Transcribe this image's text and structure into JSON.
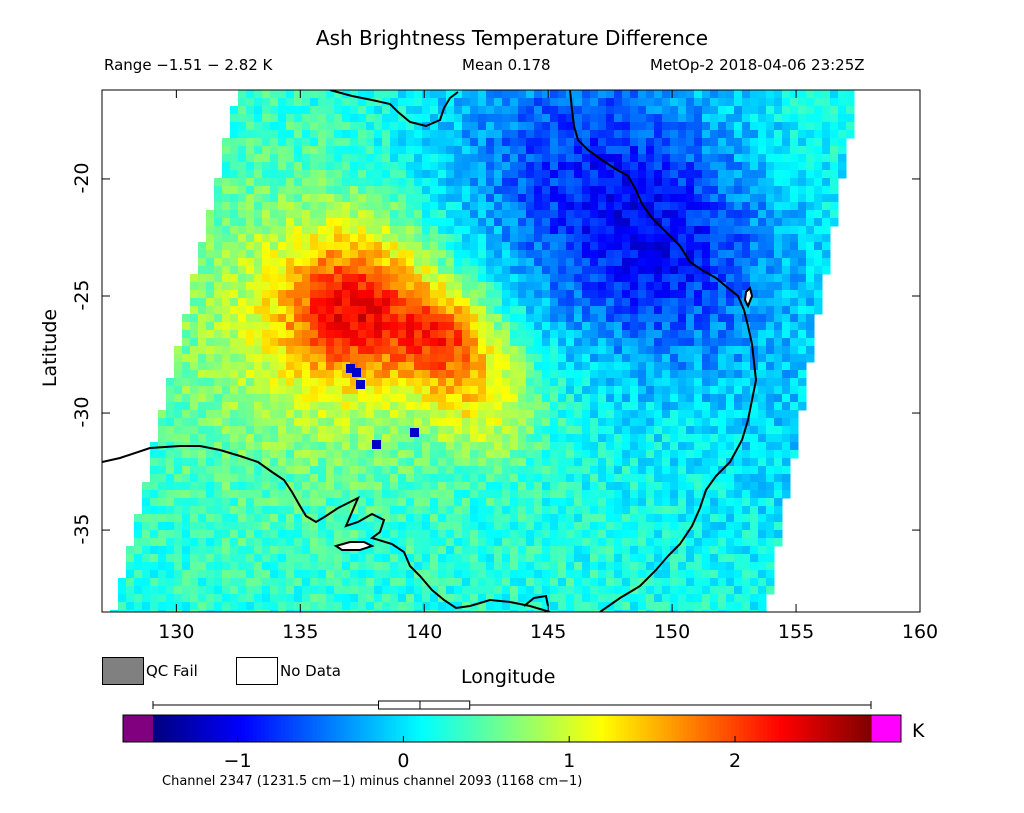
{
  "header": {
    "title": "Ash Brightness Temperature Difference",
    "range": "Range −1.51 − 2.82 K",
    "mean": "Mean 0.178",
    "satellite": "MetOp-2 2018-04-06 23:25Z"
  },
  "map": {
    "x_axis_label": "Longitude",
    "y_axis_label": "Latitude",
    "lon_range": [
      127,
      160
    ],
    "lat_range": [
      -38.5,
      -16.2
    ],
    "x_ticks": [
      "130",
      "135",
      "140",
      "145",
      "150",
      "155",
      "160"
    ],
    "y_ticks": [
      "-20",
      "-25",
      "-30",
      "-35"
    ],
    "swath_corners": [
      [
        132.5,
        -16.2
      ],
      [
        157.5,
        -16.2
      ],
      [
        153.8,
        -38.5
      ],
      [
        127.5,
        -38.5
      ]
    ],
    "hotspot_centers": [
      [
        137.3,
        -25.5
      ],
      [
        141.0,
        -26.8
      ],
      [
        142.5,
        -29.5
      ]
    ],
    "cold_region_centers": [
      [
        146,
        -19.5
      ],
      [
        150,
        -23.5
      ]
    ]
  },
  "legend": {
    "qc_fail": "QC Fail",
    "no_data": "No Data",
    "qc_fail_color": "#808080",
    "no_data_color": "#ffffff"
  },
  "colorbar": {
    "min": -1.51,
    "max": 2.82,
    "ticks": [
      "−1",
      "0",
      "1",
      "2"
    ],
    "tick_values": [
      -1,
      0,
      1,
      2
    ],
    "unit": "K",
    "underflow_color": "#800080",
    "overflow_color": "#ff00ff",
    "caption": "Channel 2347 (1231.5 cm−1) minus channel 2093 (1168 cm−1)",
    "boxplot": {
      "min": -1.51,
      "q1": -0.15,
      "median": 0.1,
      "q3": 0.4,
      "max": 2.82
    }
  }
}
